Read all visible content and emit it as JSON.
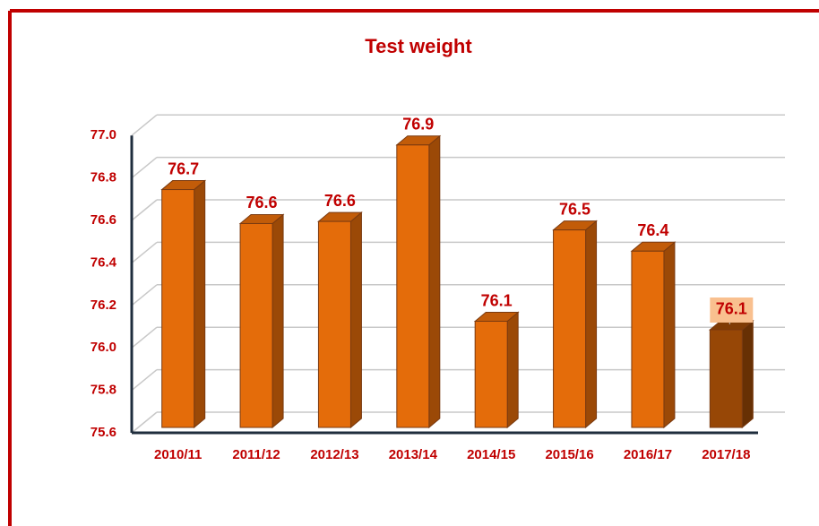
{
  "chart_data": {
    "type": "bar3d",
    "title": "Test weight",
    "categories": [
      "2010/11",
      "2011/12",
      "2012/13",
      "2013/14",
      "2014/15",
      "2015/16",
      "2016/17",
      "2017/18"
    ],
    "values": [
      76.72,
      76.56,
      76.57,
      76.93,
      76.1,
      76.53,
      76.43,
      76.06
    ],
    "value_labels": [
      "76.7",
      "76.6",
      "76.6",
      "76.9",
      "76.1",
      "76.5",
      "76.4",
      "76.1"
    ],
    "colors": [
      "#e46c0a",
      "#e46c0a",
      "#e46c0a",
      "#e46c0a",
      "#e46c0a",
      "#e46c0a",
      "#e46c0a",
      "#974706"
    ],
    "label_backgrounds": [
      null,
      null,
      null,
      null,
      null,
      null,
      null,
      "#f9c08f"
    ],
    "ylim": [
      75.6,
      77.0
    ],
    "yticks": [
      {
        "value": 75.6,
        "label": "75.6"
      },
      {
        "value": 75.8,
        "label": "75.8"
      },
      {
        "value": 76.0,
        "label": "76.0"
      },
      {
        "value": 76.2,
        "label": "76.2"
      },
      {
        "value": 76.4,
        "label": "76.4"
      },
      {
        "value": 76.6,
        "label": "76.6"
      },
      {
        "value": 76.8,
        "label": "76.8"
      },
      {
        "value": 77.0,
        "label": "77.0"
      }
    ],
    "grid": true
  }
}
